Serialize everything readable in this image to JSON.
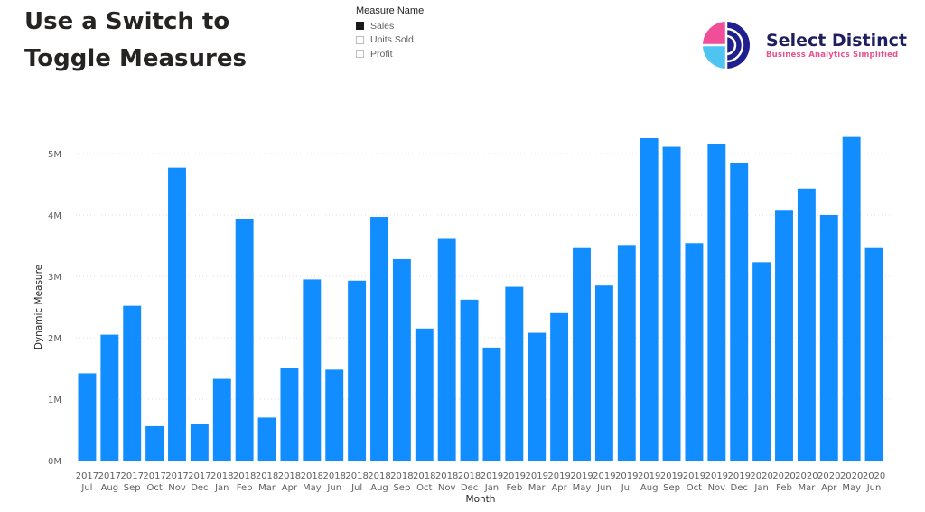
{
  "page_title_line1": "Use a Switch to",
  "page_title_line2": "Toggle Measures",
  "slicer": {
    "header": "Measure Name",
    "options": [
      {
        "label": "Sales",
        "selected": true
      },
      {
        "label": "Units Sold",
        "selected": false
      },
      {
        "label": "Profit",
        "selected": false
      }
    ]
  },
  "logo": {
    "name": "Select Distinct",
    "tagline": "Business Analytics Simplified",
    "colors": {
      "pink": "#f04e98",
      "cyan": "#4ec4f0",
      "navy": "#1f1f8e"
    }
  },
  "chart_data": {
    "type": "bar",
    "bar_color": "#118dff",
    "gridlines": true,
    "xlabel": "Month",
    "ylabel": "Dynamic Measure",
    "ylim": [
      0,
      5000000
    ],
    "y_ticks": [
      {
        "value": 0,
        "label": "0M"
      },
      {
        "value": 1000000,
        "label": "1M"
      },
      {
        "value": 2000000,
        "label": "2M"
      },
      {
        "value": 3000000,
        "label": "3M"
      },
      {
        "value": 4000000,
        "label": "4M"
      },
      {
        "value": 5000000,
        "label": "5M"
      }
    ],
    "categories": [
      {
        "year": "2017",
        "month": "Jul"
      },
      {
        "year": "2017",
        "month": "Aug"
      },
      {
        "year": "2017",
        "month": "Sep"
      },
      {
        "year": "2017",
        "month": "Oct"
      },
      {
        "year": "2017",
        "month": "Nov"
      },
      {
        "year": "2017",
        "month": "Dec"
      },
      {
        "year": "2018",
        "month": "Jan"
      },
      {
        "year": "2018",
        "month": "Feb"
      },
      {
        "year": "2018",
        "month": "Mar"
      },
      {
        "year": "2018",
        "month": "Apr"
      },
      {
        "year": "2018",
        "month": "May"
      },
      {
        "year": "2018",
        "month": "Jun"
      },
      {
        "year": "2018",
        "month": "Jul"
      },
      {
        "year": "2018",
        "month": "Aug"
      },
      {
        "year": "2018",
        "month": "Sep"
      },
      {
        "year": "2018",
        "month": "Oct"
      },
      {
        "year": "2018",
        "month": "Nov"
      },
      {
        "year": "2018",
        "month": "Dec"
      },
      {
        "year": "2019",
        "month": "Jan"
      },
      {
        "year": "2019",
        "month": "Feb"
      },
      {
        "year": "2019",
        "month": "Mar"
      },
      {
        "year": "2019",
        "month": "Apr"
      },
      {
        "year": "2019",
        "month": "May"
      },
      {
        "year": "2019",
        "month": "Jun"
      },
      {
        "year": "2019",
        "month": "Jul"
      },
      {
        "year": "2019",
        "month": "Aug"
      },
      {
        "year": "2019",
        "month": "Sep"
      },
      {
        "year": "2019",
        "month": "Oct"
      },
      {
        "year": "2019",
        "month": "Nov"
      },
      {
        "year": "2019",
        "month": "Dec"
      },
      {
        "year": "2020",
        "month": "Jan"
      },
      {
        "year": "2020",
        "month": "Feb"
      },
      {
        "year": "2020",
        "month": "Mar"
      },
      {
        "year": "2020",
        "month": "Apr"
      },
      {
        "year": "2020",
        "month": "May"
      },
      {
        "year": "2020",
        "month": "Jun"
      }
    ],
    "values": [
      1420000,
      2050000,
      2520000,
      560000,
      4770000,
      590000,
      1330000,
      3940000,
      700000,
      1510000,
      2950000,
      1480000,
      2930000,
      3970000,
      3280000,
      2150000,
      3610000,
      2620000,
      1840000,
      2830000,
      2080000,
      2400000,
      3460000,
      2850000,
      3510000,
      5250000,
      5110000,
      3540000,
      5150000,
      4850000,
      3230000,
      4070000,
      4430000,
      4000000,
      5270000,
      3460000
    ]
  }
}
